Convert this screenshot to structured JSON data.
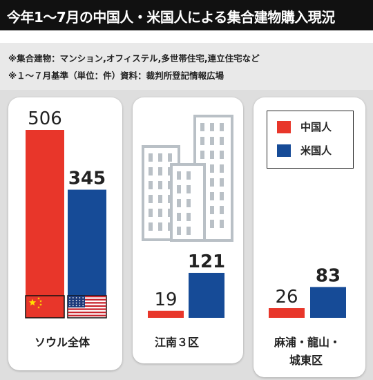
{
  "header": {
    "title": "今年1〜7月の中国人・米国人による集合建物購入現況"
  },
  "notes": [
    "※集合建物：マンション,オフィステル,多世帯住宅,連立住宅など",
    "※１～７月基準（単位：件）資料：裁判所登記情報広場"
  ],
  "legend": {
    "china_label": "中国人",
    "us_label": "米国人"
  },
  "colors": {
    "china": "#e8362a",
    "us": "#164b97",
    "header_bg": "#111111",
    "panel_bg": "#ffffff",
    "band_bg": "#dedede"
  },
  "chart_data": {
    "type": "bar",
    "categories": [
      "ソウル全体",
      "江南３区",
      "麻浦・龍山・城東区"
    ],
    "series": [
      {
        "name": "中国人",
        "values": [
          506,
          19,
          26
        ]
      },
      {
        "name": "米国人",
        "values": [
          345,
          121,
          83
        ]
      }
    ],
    "ylim": [
      0,
      506
    ],
    "grid": false,
    "legend_position": "top-right"
  },
  "panels": {
    "seoul_label": "ソウル全体",
    "gangnam_label": "江南３区",
    "mapo_label_line1": "麻浦・龍山・",
    "mapo_label_line2": "城東区"
  },
  "icons": [
    "china-flag-icon",
    "us-flag-icon",
    "buildings-icon"
  ]
}
